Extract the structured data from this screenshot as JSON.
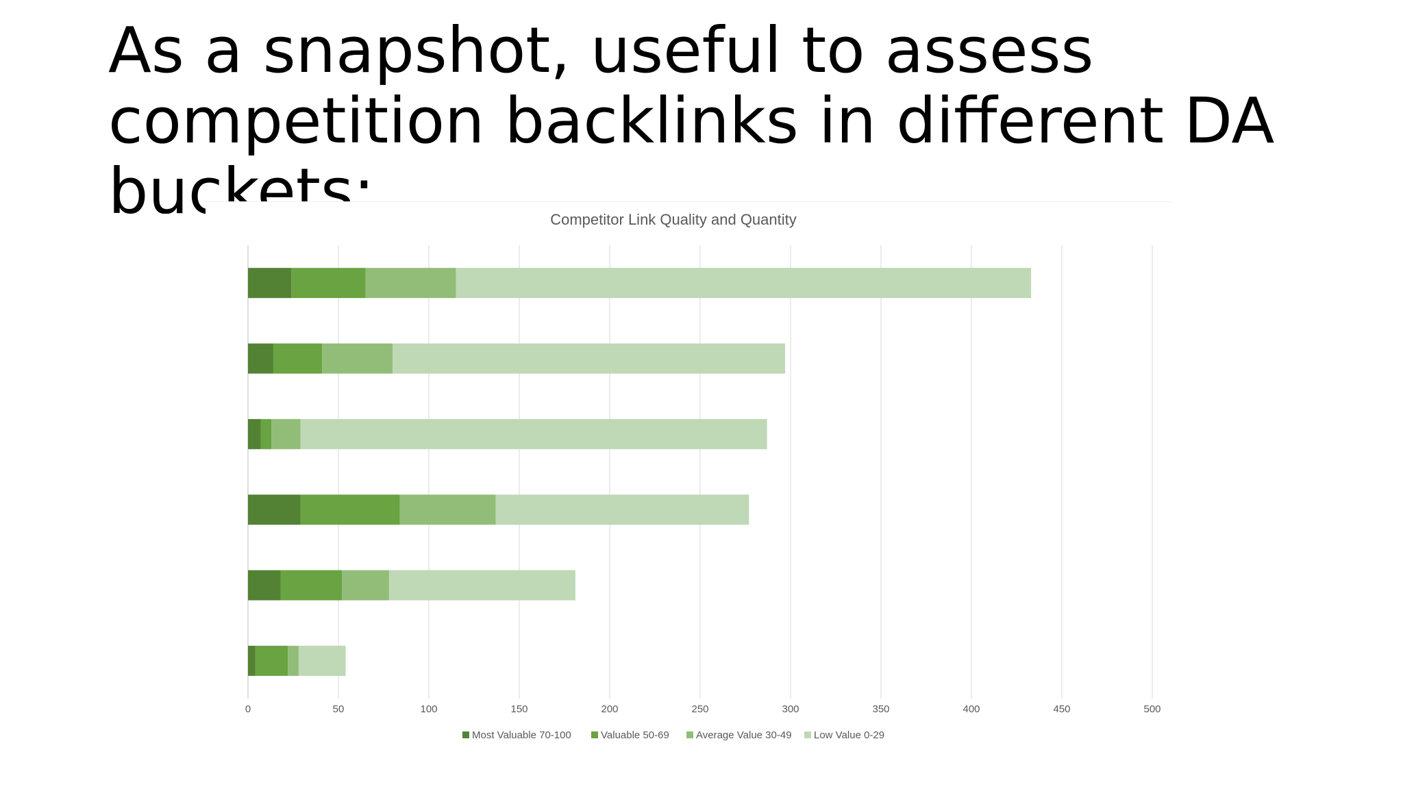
{
  "slide": {
    "title": "As a snapshot, useful to assess competition backlinks in different DA buckets:"
  },
  "chart_data": {
    "type": "bar",
    "orientation": "horizontal",
    "stacked": true,
    "title": "Competitor Link Quality and Quantity",
    "xlabel": "",
    "ylabel": "",
    "xlim": [
      0,
      500
    ],
    "xticks": [
      0,
      50,
      100,
      150,
      200,
      250,
      300,
      350,
      400,
      450,
      500
    ],
    "categories": [
      "",
      "",
      "",
      "",
      "",
      ""
    ],
    "grid": "vertical",
    "legend": "bottom",
    "series": [
      {
        "name": "Most Valuable 70-100",
        "color": "#548235",
        "values": [
          24,
          14,
          7,
          29,
          18,
          4
        ]
      },
      {
        "name": "Valuable 50-69",
        "color": "#6aa342",
        "values": [
          41,
          27,
          6,
          55,
          34,
          18
        ]
      },
      {
        "name": "Average Value 30-49",
        "color": "#92bd79",
        "values": [
          50,
          39,
          16,
          53,
          26,
          6
        ]
      },
      {
        "name": "Low Value 0-29",
        "color": "#bfd8b5",
        "values": [
          318,
          217,
          258,
          140,
          103,
          26
        ]
      }
    ]
  }
}
